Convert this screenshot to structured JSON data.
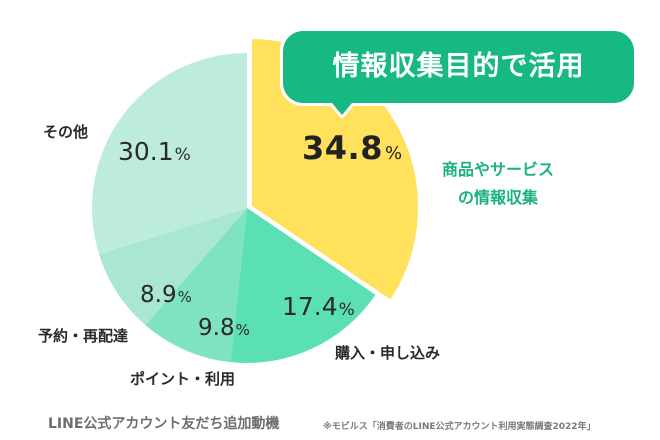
{
  "bubble": {
    "text": "情報収集目的で活用"
  },
  "slices": [
    {
      "id": "info",
      "label_lines": [
        "商品やサービス",
        "の情報収集"
      ],
      "value": "34.8",
      "unit": "%",
      "color": "#FFE15B"
    },
    {
      "id": "purchase",
      "label": "購入・申し込み",
      "value": "17.4",
      "unit": "%",
      "color": "#5BDFB4"
    },
    {
      "id": "points",
      "label": "ポイント・利用",
      "value": "9.8",
      "unit": "%",
      "color": "#7FE3C3"
    },
    {
      "id": "reservation",
      "label": "予約・再配達",
      "value": "8.9",
      "unit": "%",
      "color": "#A9E6D3"
    },
    {
      "id": "other",
      "label": "その他",
      "value": "30.1",
      "unit": "%",
      "color": "#BDECDE"
    }
  ],
  "footer": {
    "title": "LINE公式アカウント友だち追加動機",
    "source": "※モビルス「消費者のLINE公式アカウント利用実態調査2022年」"
  },
  "colors": {
    "accent": "#17B883",
    "highlight_text": "#1AB27E",
    "highlight_slice": "#FFE15B"
  },
  "chart_data": {
    "type": "pie",
    "title": "LINE公式アカウント友だち追加動機",
    "categories": [
      "商品やサービスの情報収集",
      "購入・申し込み",
      "ポイント・利用",
      "予約・再配達",
      "その他"
    ],
    "values": [
      34.8,
      17.4,
      9.8,
      8.9,
      30.1
    ],
    "unit": "%",
    "colors": [
      "#FFE15B",
      "#5BDFB4",
      "#7FE3C3",
      "#A9E6D3",
      "#BDECDE"
    ],
    "highlighted_category": "商品やサービスの情報収集",
    "annotation": "情報収集目的で活用",
    "source": "※モビルス「消費者のLINE公式アカウント利用実態調査2022年」",
    "start": "top",
    "direction": "clockwise",
    "legend": "none (direct labels)"
  }
}
